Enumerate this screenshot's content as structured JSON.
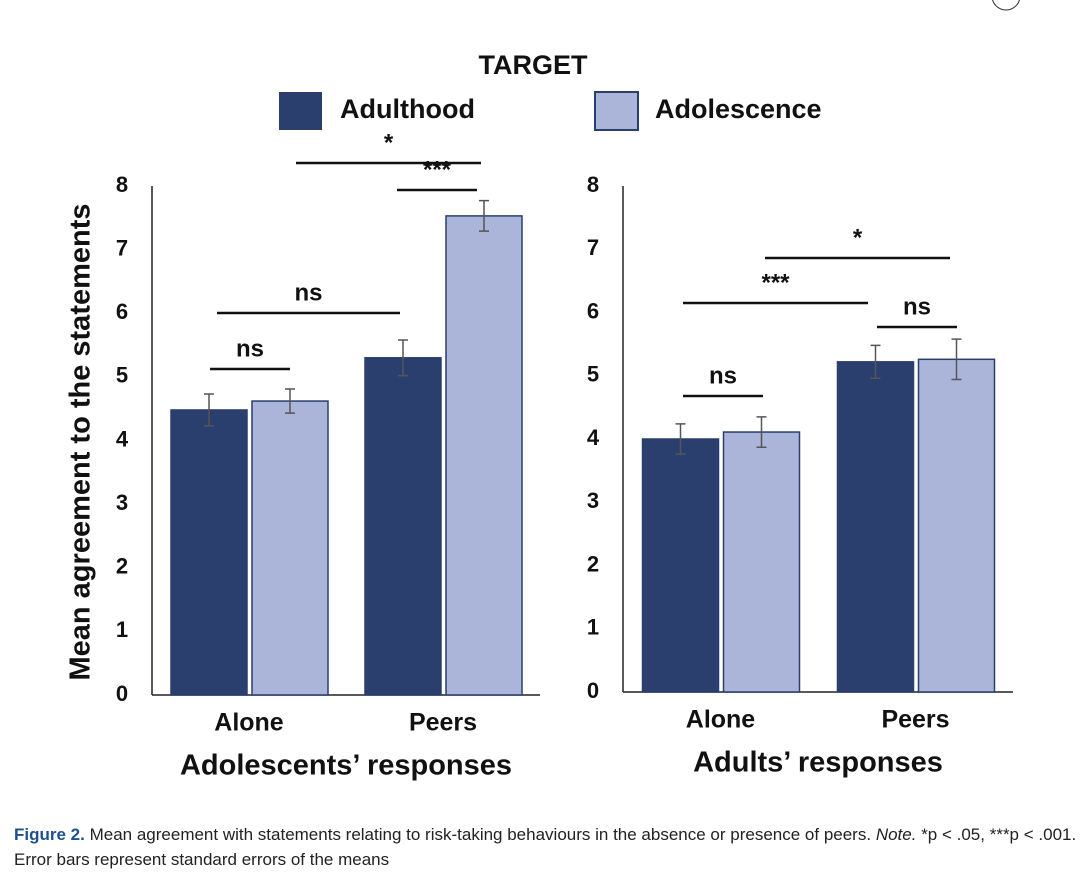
{
  "legend_title": "TARGET",
  "caption": {
    "label": "Figure 2.",
    "text": "Mean agreement with statements relating to risk-taking behaviours in the absence or presence of peers.",
    "note_label": "Note.",
    "note": "*p < .05, ***p < .001. Error bars represent standard errors of the means"
  },
  "chart_data": [
    {
      "type": "bar",
      "ylabel": "Mean agreement to the statements",
      "xlabel": "Adolescents’ responses",
      "categories": [
        "Alone",
        "Peers"
      ],
      "series": [
        {
          "name": "Adulthood",
          "color": "#2b3f6f",
          "values": [
            4.48,
            5.3
          ],
          "errors": [
            0.25,
            0.28
          ]
        },
        {
          "name": "Adolescence",
          "color": "#aab5d9",
          "values": [
            4.62,
            7.53
          ],
          "errors": [
            0.19,
            0.24
          ]
        }
      ],
      "ylim": [
        0,
        8
      ],
      "yticks": [
        0,
        1,
        2,
        3,
        4,
        5,
        6,
        7,
        8
      ],
      "grid": false,
      "annotations": [
        "ns",
        "ns",
        "***",
        "*"
      ]
    },
    {
      "type": "bar",
      "xlabel": "Adults’ responses",
      "categories": [
        "Alone",
        "Peers"
      ],
      "series": [
        {
          "name": "Adulthood",
          "color": "#2b3f6f",
          "values": [
            4.0,
            5.22
          ],
          "errors": [
            0.24,
            0.26
          ]
        },
        {
          "name": "Adolescence",
          "color": "#aab5d9",
          "values": [
            4.11,
            5.26
          ],
          "errors": [
            0.24,
            0.32
          ]
        }
      ],
      "ylim": [
        0,
        8
      ],
      "yticks": [
        0,
        1,
        2,
        3,
        4,
        5,
        6,
        7,
        8
      ],
      "grid": false,
      "annotations": [
        "ns",
        "***",
        "*",
        "ns"
      ]
    }
  ]
}
